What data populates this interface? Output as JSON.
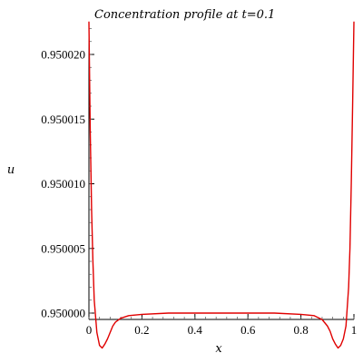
{
  "chart_data": {
    "type": "line",
    "title": "Concentration profile at t=0.1",
    "xlabel": "x",
    "ylabel": "u",
    "xlim": [
      0,
      1
    ],
    "ylim": [
      0.949999,
      0.9500225
    ],
    "x_ticks": [
      0,
      0.2,
      0.4,
      0.6,
      0.8,
      1
    ],
    "x_tick_labels": [
      "0",
      "0.2",
      "0.4",
      "0.6",
      "0.8",
      "1"
    ],
    "y_ticks": [
      0.95,
      0.950005,
      0.95001,
      0.950015,
      0.95002
    ],
    "y_tick_labels": [
      "0.950000",
      "0.950005",
      "0.950010",
      "0.950015",
      "0.950020"
    ],
    "grid": false,
    "series": [
      {
        "color": "#e00000",
        "x": [
          0,
          0.005,
          0.01,
          0.015,
          0.02,
          0.03,
          0.04,
          0.05,
          0.06,
          0.07,
          0.08,
          0.09,
          0.1,
          0.12,
          0.15,
          0.2,
          0.3,
          0.4,
          0.5,
          0.6,
          0.7,
          0.8,
          0.85,
          0.88,
          0.9,
          0.91,
          0.92,
          0.93,
          0.94,
          0.95,
          0.96,
          0.97,
          0.98,
          0.985,
          0.99,
          0.995,
          1
        ],
        "y": [
          0.9500225,
          0.950014,
          0.950008,
          0.950004,
          0.950001,
          0.9499985,
          0.9499975,
          0.9499973,
          0.9499976,
          0.949998,
          0.9499985,
          0.949999,
          0.9499993,
          0.9499996,
          0.9499998,
          0.9499999,
          0.95,
          0.95,
          0.95,
          0.95,
          0.95,
          0.9499999,
          0.9499998,
          0.9499995,
          0.949999,
          0.9499986,
          0.949998,
          0.9499976,
          0.9499973,
          0.9499975,
          0.949998,
          0.949999,
          0.950002,
          0.950005,
          0.95001,
          0.950016,
          0.9500225
        ]
      }
    ]
  }
}
